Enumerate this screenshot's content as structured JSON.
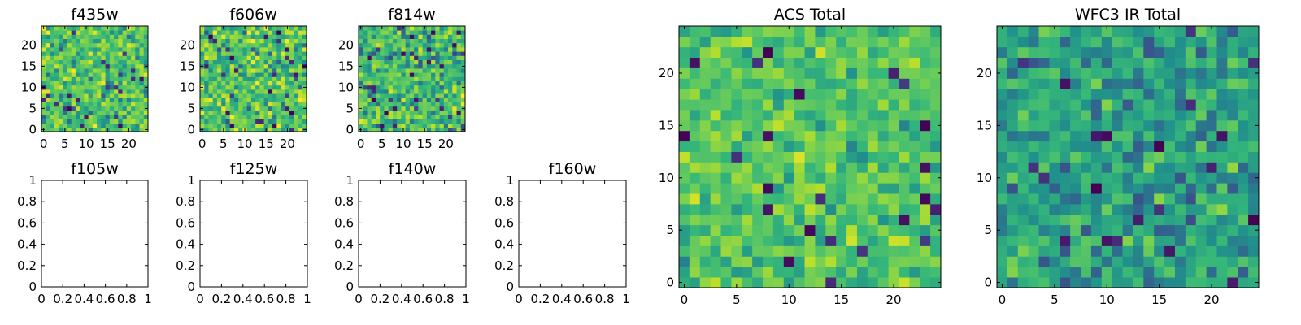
{
  "chart_data": [
    {
      "type": "heatmap",
      "title": "f435w",
      "extent": [
        -0.5,
        24.5,
        -0.5,
        24.5
      ],
      "xticks": [
        0,
        5,
        10,
        15,
        20
      ],
      "yticks": [
        0,
        5,
        10,
        15,
        20
      ],
      "colormap": "viridis",
      "empty": false
    },
    {
      "type": "heatmap",
      "title": "f606w",
      "extent": [
        -0.5,
        24.5,
        -0.5,
        24.5
      ],
      "xticks": [
        0,
        5,
        10,
        15,
        20
      ],
      "yticks": [
        0,
        5,
        10,
        15,
        20
      ],
      "colormap": "viridis",
      "empty": false
    },
    {
      "type": "heatmap",
      "title": "f814w",
      "extent": [
        -0.5,
        24.5,
        -0.5,
        24.5
      ],
      "xticks": [
        0,
        5,
        10,
        15,
        20
      ],
      "yticks": [
        0,
        5,
        10,
        15,
        20
      ],
      "colormap": "viridis",
      "empty": false
    },
    {
      "type": "heatmap",
      "title": "f105w",
      "extent": [
        0,
        1,
        0,
        1
      ],
      "xticks": [
        0.0,
        0.2,
        0.4,
        0.6,
        0.8,
        1.0
      ],
      "yticks": [
        0.0,
        0.2,
        0.4,
        0.6,
        0.8,
        1.0
      ],
      "empty": true
    },
    {
      "type": "heatmap",
      "title": "f125w",
      "extent": [
        0,
        1,
        0,
        1
      ],
      "xticks": [
        0.0,
        0.2,
        0.4,
        0.6,
        0.8,
        1.0
      ],
      "yticks": [
        0.0,
        0.2,
        0.4,
        0.6,
        0.8,
        1.0
      ],
      "empty": true
    },
    {
      "type": "heatmap",
      "title": "f140w",
      "extent": [
        0,
        1,
        0,
        1
      ],
      "xticks": [
        0.0,
        0.2,
        0.4,
        0.6,
        0.8,
        1.0
      ],
      "yticks": [
        0.0,
        0.2,
        0.4,
        0.6,
        0.8,
        1.0
      ],
      "empty": true
    },
    {
      "type": "heatmap",
      "title": "f160w",
      "extent": [
        0,
        1,
        0,
        1
      ],
      "xticks": [
        0.0,
        0.2,
        0.4,
        0.6,
        0.8,
        1.0
      ],
      "yticks": [
        0.0,
        0.2,
        0.4,
        0.6,
        0.8,
        1.0
      ],
      "empty": true
    },
    {
      "type": "heatmap",
      "title": "ACS Total",
      "extent": [
        -0.5,
        24.5,
        -0.5,
        24.5
      ],
      "xticks": [
        0,
        5,
        10,
        15,
        20
      ],
      "yticks": [
        0,
        5,
        10,
        15,
        20
      ],
      "colormap": "viridis",
      "empty": false
    },
    {
      "type": "heatmap",
      "title": "WFC3 IR Total",
      "extent": [
        -0.5,
        24.5,
        -0.5,
        24.5
      ],
      "xticks": [
        0,
        5,
        10,
        15,
        20
      ],
      "yticks": [
        0,
        5,
        10,
        15,
        20
      ],
      "colormap": "viridis",
      "empty": false
    }
  ]
}
